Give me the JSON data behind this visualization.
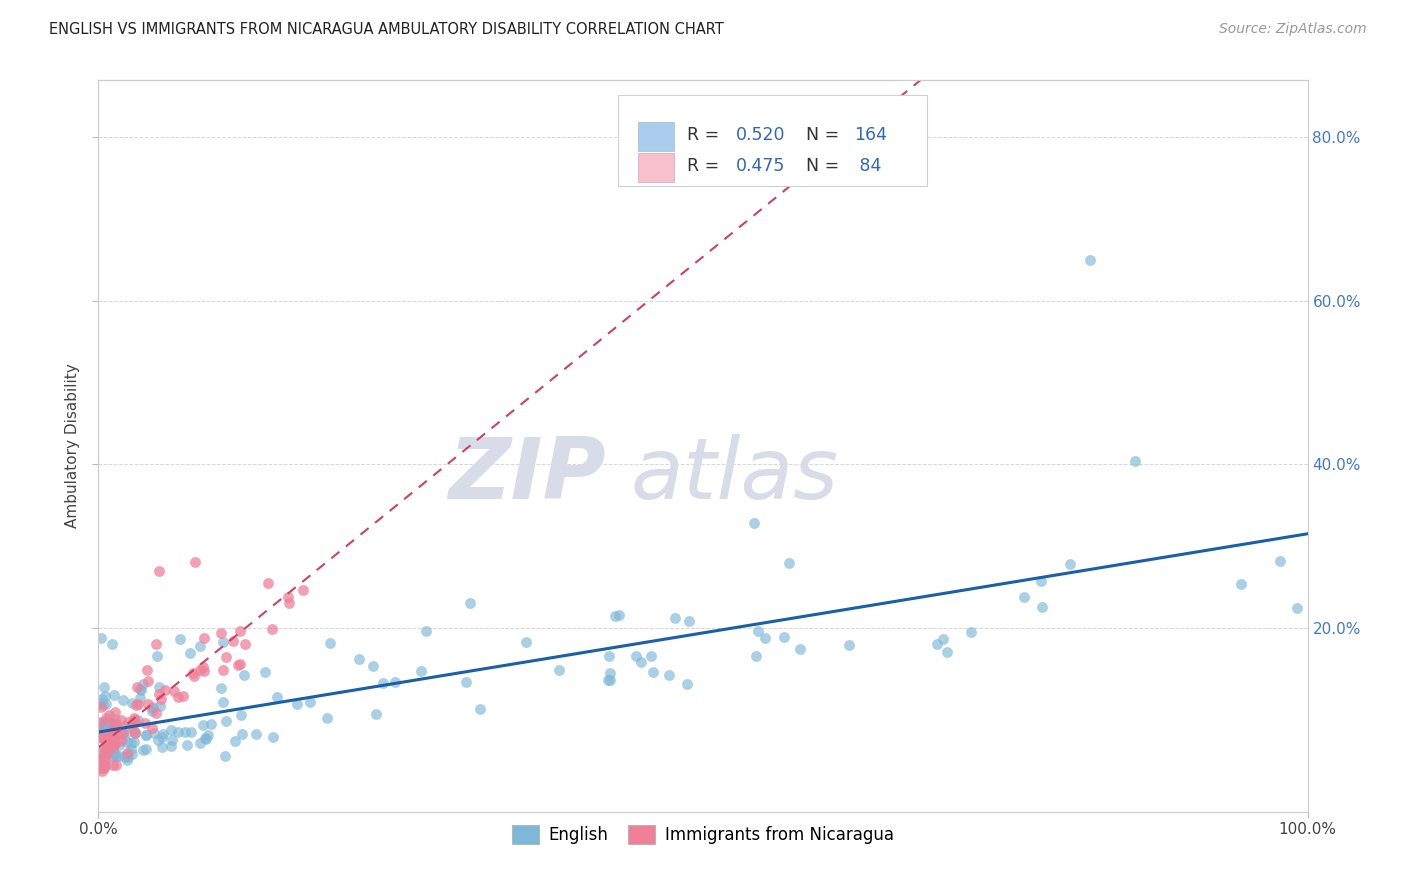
{
  "title": "ENGLISH VS IMMIGRANTS FROM NICARAGUA AMBULATORY DISABILITY CORRELATION CHART",
  "source": "Source: ZipAtlas.com",
  "ylabel": "Ambulatory Disability",
  "xlim": [
    0,
    1.0
  ],
  "ylim": [
    -0.025,
    0.87
  ],
  "y_tick_values": [
    0.2,
    0.4,
    0.6,
    0.8
  ],
  "y_tick_labels_right": [
    "20.0%",
    "40.0%",
    "60.0%",
    "80.0%"
  ],
  "english_color": "#7db8d8",
  "nicaragua_color": "#f08098",
  "trendline_english_color": "#1a5fa8",
  "trendline_nicaragua_color": "#d04060",
  "watermark_zip": "ZIP",
  "watermark_atlas": "atlas",
  "watermark_color": "#d8dce8",
  "background_color": "#ffffff",
  "grid_color": "#cccccc",
  "legend_blue_color": "#aaccee",
  "legend_pink_color": "#f8c0cc",
  "legend_text_color": "#3366bb",
  "legend_label_color": "#333333",
  "english_seed": 42,
  "nicaragua_seed": 99
}
